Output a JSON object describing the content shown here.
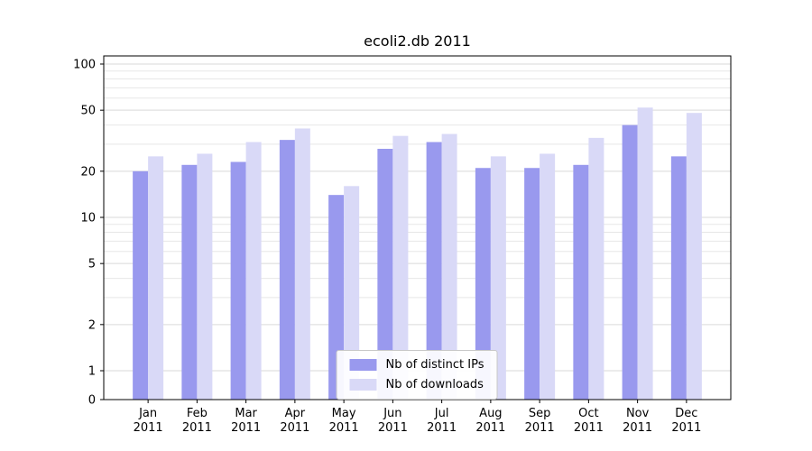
{
  "title": "ecoli2.db 2011",
  "legend": {
    "items": [
      {
        "label": "Nb of distinct IPs"
      },
      {
        "label": "Nb of downloads"
      }
    ]
  },
  "chart_data": {
    "type": "bar",
    "title": "ecoli2.db 2011",
    "categories": [
      "Jan 2011",
      "Feb 2011",
      "Mar 2011",
      "Apr 2011",
      "May 2011",
      "Jun 2011",
      "Jul 2011",
      "Aug 2011",
      "Sep 2011",
      "Oct 2011",
      "Nov 2011",
      "Dec 2011"
    ],
    "series": [
      {
        "name": "Nb of distinct IPs",
        "color": "#9999ee",
        "values": [
          20,
          22,
          23,
          32,
          14,
          28,
          31,
          21,
          21,
          22,
          40,
          25
        ]
      },
      {
        "name": "Nb of downloads",
        "color": "#d9d9f7",
        "values": [
          25,
          26,
          31,
          38,
          16,
          34,
          35,
          25,
          26,
          33,
          52,
          48
        ]
      }
    ],
    "xlabel": "",
    "ylabel": "",
    "yscale": "symlog",
    "yticks": [
      0,
      1,
      2,
      5,
      10,
      20,
      50,
      100
    ],
    "ylim": [
      0,
      115
    ],
    "grid": "horizontal log minor + major",
    "legend_position": "lower center",
    "colors": {
      "grid_minor": "#e7e7e7",
      "grid_major": "#d9d9d9",
      "axis": "#000000"
    }
  }
}
